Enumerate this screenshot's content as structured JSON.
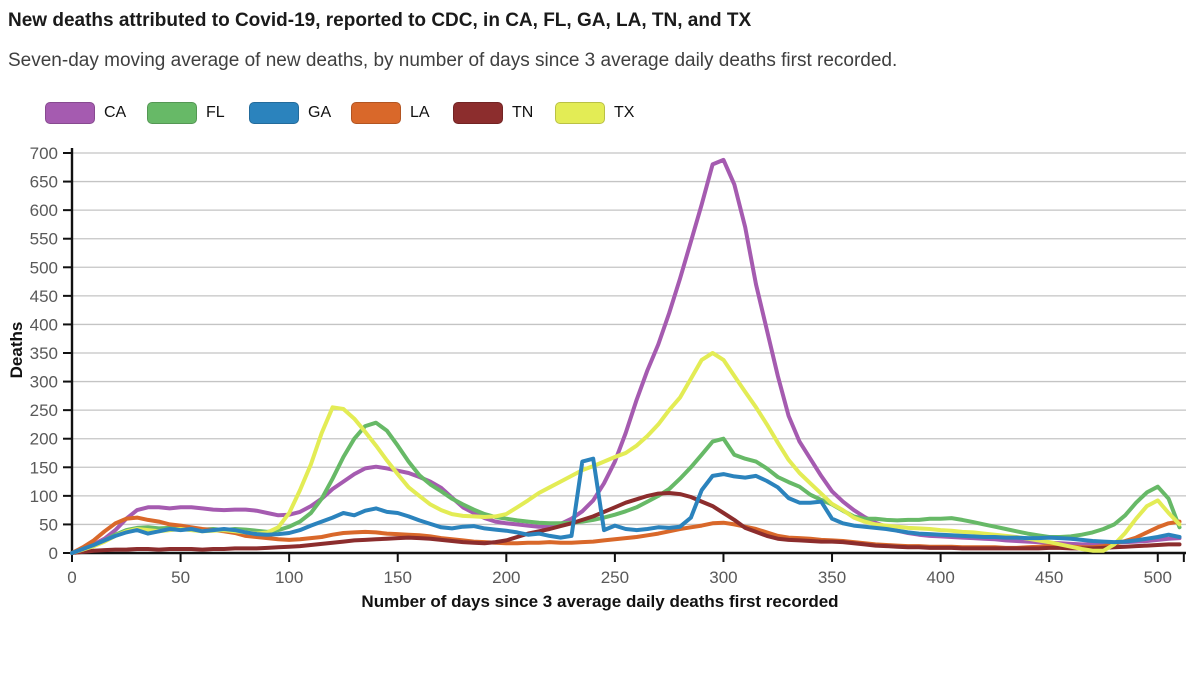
{
  "header": {
    "title": "New deaths attributed to Covid-19, reported to CDC, in CA, FL, GA, LA, TN, and TX",
    "subtitle": "Seven-day moving average of new deaths, by number of days since 3 average daily deaths first recorded."
  },
  "legend": {
    "items": [
      {
        "label": "CA",
        "color": "#a55bb0"
      },
      {
        "label": "FL",
        "color": "#67b967"
      },
      {
        "label": "GA",
        "color": "#2b83bd"
      },
      {
        "label": "LA",
        "color": "#d9682a"
      },
      {
        "label": "TN",
        "color": "#8c2d2d"
      },
      {
        "label": "TX",
        "color": "#e3ec55"
      }
    ]
  },
  "colors": {
    "axis": "#111111",
    "grid": "#c4c4c4",
    "tick_label": "#595959",
    "background": "#ffffff"
  },
  "chart_data": {
    "type": "line",
    "title": "New deaths attributed to Covid-19, reported to CDC, in CA, FL, GA, LA, TN, and TX",
    "subtitle": "Seven-day moving average of new deaths, by number of days since 3 average daily deaths first recorded.",
    "xlabel": "Number of days since 3 average daily deaths first recorded",
    "ylabel": "Deaths",
    "xlim": [
      0,
      513
    ],
    "ylim": [
      0,
      700
    ],
    "xticks": [
      0,
      50,
      100,
      150,
      200,
      250,
      300,
      350,
      400,
      450,
      500
    ],
    "x_end_tick": 512,
    "yticks": [
      0,
      50,
      100,
      150,
      200,
      250,
      300,
      350,
      400,
      450,
      500,
      550,
      600,
      650,
      700
    ],
    "grid": "horizontal",
    "legend_position": "top",
    "draw_order": [
      "CA",
      "FL",
      "LA",
      "TN",
      "TX",
      "GA"
    ],
    "x": [
      0,
      5,
      10,
      15,
      20,
      25,
      30,
      35,
      40,
      45,
      50,
      55,
      60,
      65,
      70,
      75,
      80,
      85,
      90,
      95,
      100,
      105,
      110,
      115,
      120,
      125,
      130,
      135,
      140,
      145,
      150,
      155,
      160,
      165,
      170,
      175,
      180,
      185,
      190,
      195,
      200,
      205,
      210,
      215,
      220,
      225,
      230,
      235,
      240,
      245,
      250,
      255,
      260,
      265,
      270,
      275,
      280,
      285,
      290,
      295,
      300,
      305,
      310,
      315,
      320,
      325,
      330,
      335,
      340,
      345,
      350,
      355,
      360,
      365,
      370,
      375,
      380,
      385,
      390,
      395,
      400,
      405,
      410,
      415,
      420,
      425,
      430,
      435,
      440,
      445,
      450,
      455,
      460,
      465,
      470,
      475,
      480,
      485,
      490,
      495,
      500,
      505,
      510
    ],
    "series": [
      {
        "name": "CA",
        "color": "#a55bb0",
        "values": [
          0,
          8,
          15,
          25,
          40,
          60,
          75,
          80,
          80,
          78,
          80,
          80,
          78,
          76,
          75,
          76,
          76,
          74,
          70,
          66,
          67,
          72,
          82,
          95,
          112,
          125,
          138,
          148,
          151,
          148,
          144,
          140,
          133,
          125,
          114,
          97,
          80,
          70,
          61,
          55,
          52,
          50,
          48,
          46,
          47,
          51,
          60,
          73,
          92,
          122,
          160,
          210,
          268,
          320,
          365,
          420,
          480,
          545,
          610,
          680,
          688,
          645,
          570,
          470,
          390,
          310,
          240,
          195,
          165,
          135,
          108,
          90,
          75,
          63,
          53,
          46,
          39,
          35,
          32,
          30,
          29,
          28,
          27,
          26,
          25,
          24,
          22,
          21,
          20,
          19,
          18,
          17,
          16,
          15,
          15,
          16,
          18,
          19,
          20,
          21,
          23,
          25,
          26
        ]
      },
      {
        "name": "FL",
        "color": "#67b967",
        "values": [
          0,
          6,
          12,
          22,
          32,
          40,
          44,
          45,
          43,
          44,
          45,
          43,
          41,
          42,
          40,
          42,
          41,
          39,
          37,
          40,
          46,
          55,
          70,
          95,
          130,
          168,
          200,
          222,
          228,
          214,
          188,
          160,
          136,
          120,
          108,
          95,
          85,
          76,
          68,
          63,
          60,
          57,
          55,
          53,
          52,
          52,
          53,
          55,
          58,
          62,
          67,
          73,
          80,
          90,
          100,
          112,
          130,
          150,
          172,
          195,
          200,
          172,
          165,
          160,
          148,
          133,
          124,
          116,
          102,
          93,
          85,
          74,
          64,
          60,
          60,
          58,
          57,
          58,
          58,
          60,
          60,
          61,
          58,
          54,
          50,
          46,
          42,
          38,
          34,
          31,
          28,
          28,
          29,
          32,
          36,
          42,
          50,
          66,
          88,
          106,
          116,
          95,
          45
        ]
      },
      {
        "name": "GA",
        "color": "#2b83bd",
        "values": [
          0,
          7,
          14,
          22,
          30,
          36,
          40,
          34,
          38,
          42,
          40,
          42,
          38,
          40,
          42,
          40,
          36,
          33,
          32,
          33,
          35,
          40,
          48,
          55,
          62,
          70,
          66,
          74,
          78,
          72,
          70,
          64,
          57,
          51,
          45,
          43,
          46,
          47,
          43,
          41,
          39,
          36,
          32,
          34,
          30,
          27,
          30,
          160,
          165,
          40,
          48,
          42,
          40,
          42,
          45,
          44,
          46,
          62,
          110,
          135,
          138,
          134,
          132,
          135,
          126,
          115,
          96,
          88,
          88,
          90,
          60,
          52,
          48,
          46,
          44,
          42,
          39,
          36,
          34,
          33,
          32,
          31,
          30,
          29,
          28,
          28,
          27,
          27,
          26,
          26,
          27,
          26,
          25,
          23,
          21,
          20,
          19,
          20,
          22,
          25,
          28,
          32,
          28
        ]
      },
      {
        "name": "LA",
        "color": "#d9682a",
        "values": [
          0,
          10,
          22,
          38,
          52,
          60,
          62,
          58,
          55,
          50,
          48,
          45,
          42,
          40,
          38,
          35,
          30,
          28,
          26,
          24,
          23,
          24,
          26,
          28,
          32,
          35,
          36,
          37,
          36,
          34,
          33,
          32,
          31,
          29,
          26,
          24,
          22,
          20,
          19,
          18,
          17,
          17,
          18,
          18,
          19,
          18,
          18,
          19,
          20,
          22,
          24,
          26,
          28,
          31,
          34,
          38,
          42,
          45,
          48,
          52,
          53,
          50,
          46,
          42,
          36,
          30,
          27,
          26,
          25,
          23,
          22,
          21,
          19,
          17,
          15,
          14,
          13,
          12,
          12,
          11,
          11,
          11,
          10,
          10,
          10,
          10,
          9,
          9,
          10,
          11,
          12,
          12,
          11,
          10,
          10,
          12,
          16,
          21,
          27,
          36,
          45,
          52,
          55
        ]
      },
      {
        "name": "TN",
        "color": "#8c2d2d",
        "values": [
          0,
          2,
          4,
          5,
          6,
          6,
          7,
          7,
          6,
          7,
          7,
          7,
          6,
          7,
          7,
          8,
          8,
          8,
          9,
          10,
          11,
          12,
          14,
          16,
          18,
          20,
          22,
          23,
          24,
          25,
          26,
          27,
          26,
          25,
          23,
          21,
          19,
          18,
          17,
          19,
          22,
          28,
          34,
          38,
          42,
          47,
          52,
          58,
          64,
          72,
          80,
          88,
          94,
          100,
          104,
          105,
          103,
          98,
          90,
          82,
          70,
          58,
          44,
          37,
          30,
          25,
          23,
          22,
          21,
          20,
          20,
          19,
          17,
          15,
          13,
          12,
          11,
          10,
          10,
          9,
          9,
          9,
          8,
          8,
          8,
          8,
          8,
          8,
          8,
          8,
          9,
          9,
          8,
          8,
          8,
          9,
          10,
          11,
          12,
          13,
          14,
          15,
          15
        ]
      },
      {
        "name": "TX",
        "color": "#e3ec55",
        "values": [
          0,
          6,
          12,
          20,
          30,
          38,
          42,
          40,
          38,
          40,
          42,
          40,
          38,
          39,
          40,
          38,
          36,
          34,
          36,
          45,
          70,
          110,
          155,
          210,
          255,
          252,
          235,
          212,
          188,
          162,
          138,
          115,
          100,
          85,
          75,
          68,
          65,
          64,
          63,
          64,
          68,
          80,
          92,
          105,
          115,
          125,
          135,
          145,
          152,
          160,
          168,
          175,
          188,
          205,
          225,
          250,
          272,
          305,
          338,
          350,
          338,
          310,
          282,
          255,
          225,
          193,
          163,
          140,
          122,
          104,
          86,
          75,
          62,
          55,
          50,
          48,
          46,
          44,
          43,
          42,
          40,
          39,
          37,
          36,
          34,
          32,
          30,
          28,
          25,
          22,
          19,
          15,
          11,
          7,
          4,
          4,
          15,
          35,
          60,
          82,
          92,
          70,
          50
        ]
      }
    ]
  }
}
